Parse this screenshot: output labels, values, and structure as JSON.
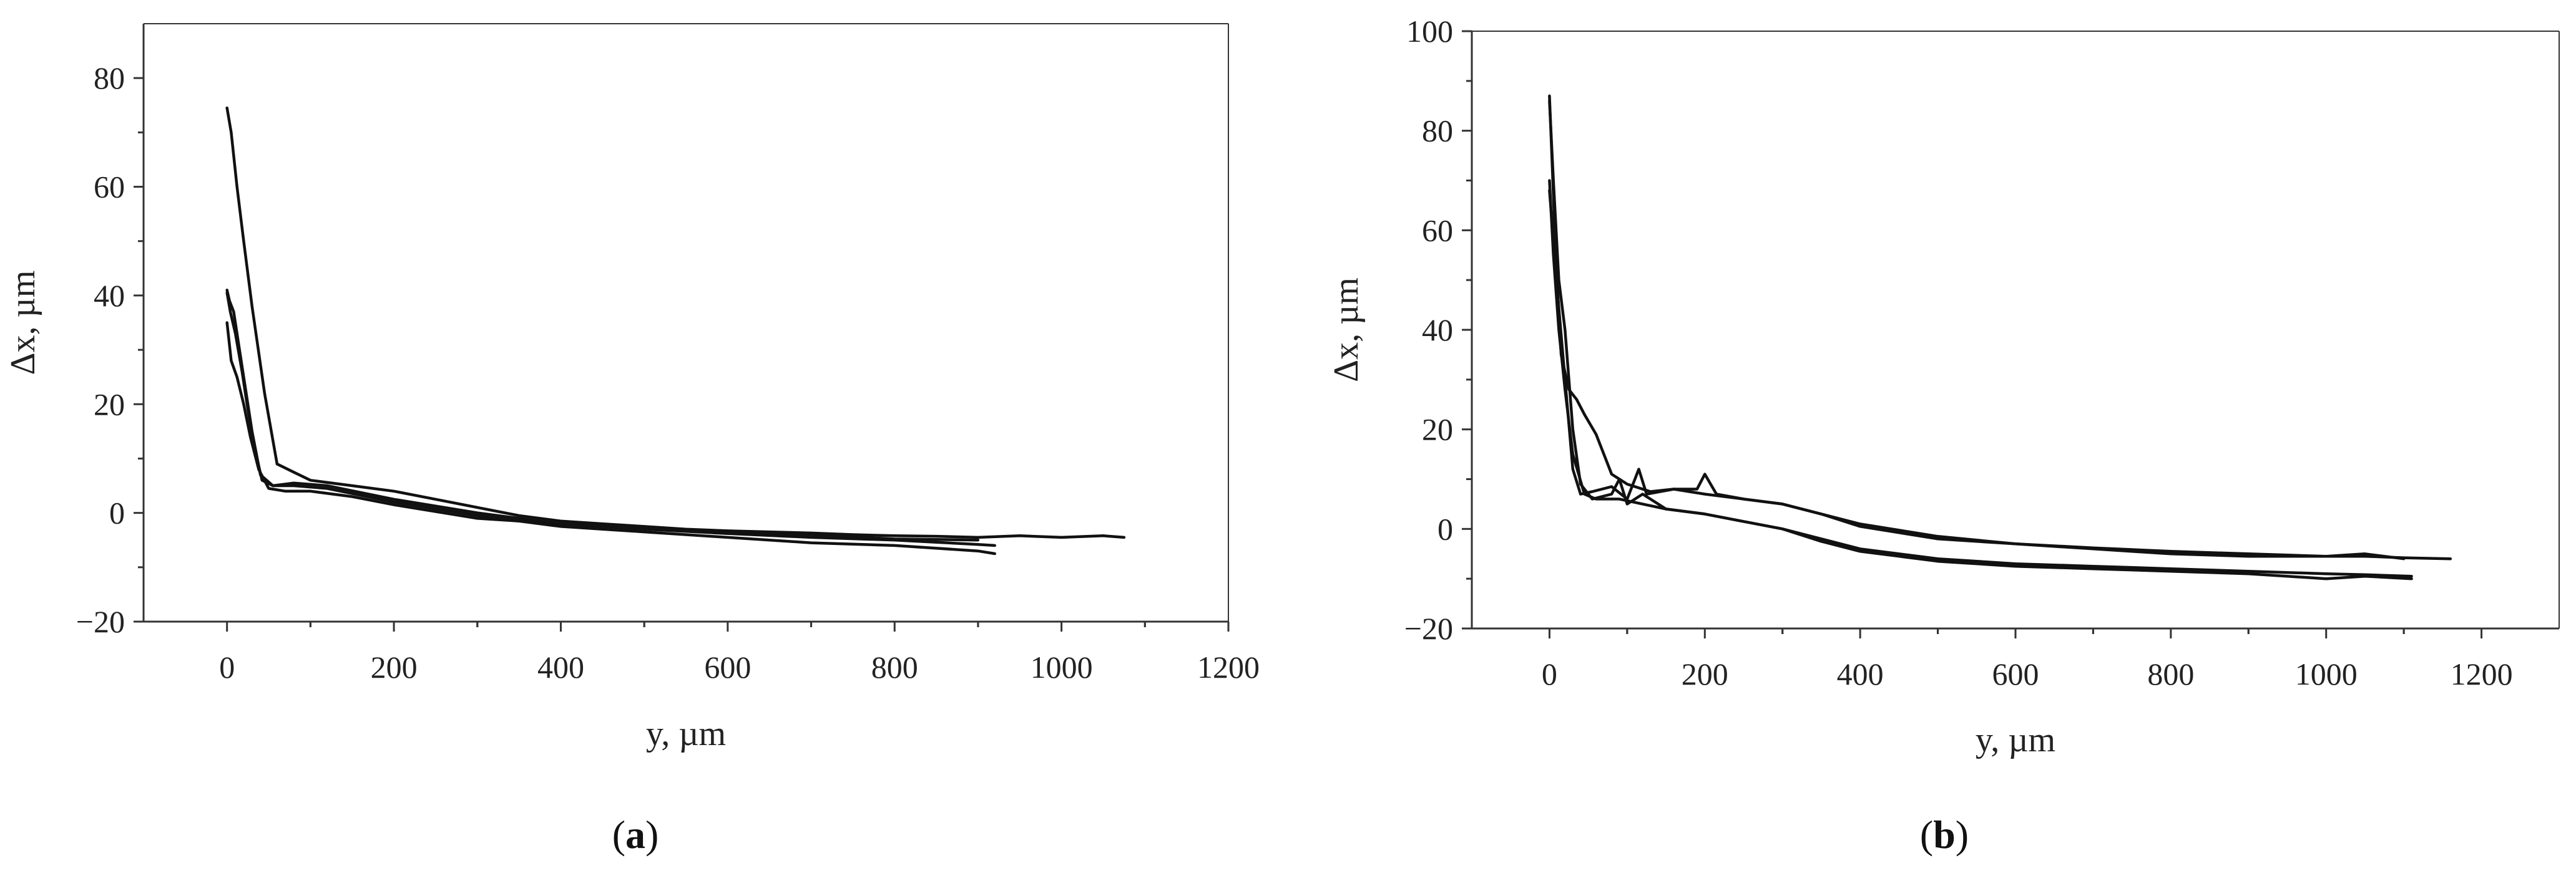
{
  "chart_data": [
    {
      "type": "line",
      "panel_label": "a",
      "xlabel": "y, µm",
      "ylabel": "Δx, µm",
      "xlim": [
        -100,
        1200
      ],
      "ylim": [
        -20,
        90
      ],
      "xticks": [
        0,
        200,
        400,
        600,
        800,
        1000,
        1200
      ],
      "yticks": [
        -20,
        0,
        20,
        40,
        60,
        80
      ],
      "ytick_labels": [
        "−20",
        "0",
        "20",
        "40",
        "60",
        "80"
      ],
      "series": [
        {
          "x": [
            0,
            5,
            12,
            20,
            30,
            45,
            60,
            80,
            100,
            150,
            200,
            250,
            300,
            350,
            400,
            450,
            500,
            550,
            600,
            650,
            700,
            750,
            800,
            850,
            900,
            950,
            1000,
            1050,
            1075
          ],
          "y": [
            74.5,
            70,
            60,
            50,
            38,
            22,
            9,
            7.5,
            6,
            5,
            4,
            2.5,
            1,
            -0.5,
            -1.5,
            -2,
            -2.5,
            -3,
            -3.3,
            -3.5,
            -3.7,
            -4,
            -4.2,
            -4.3,
            -4.5,
            -4.2,
            -4.5,
            -4.2,
            -4.5
          ]
        },
        {
          "x": [
            0,
            3,
            8,
            15,
            22,
            30,
            40,
            55,
            80,
            120,
            200,
            300,
            400,
            500,
            600,
            700,
            800,
            900,
            920
          ],
          "y": [
            41,
            39,
            37,
            30,
            23,
            15,
            7,
            5,
            5.5,
            5,
            2.5,
            0,
            -2,
            -3,
            -3.8,
            -4.5,
            -5,
            -5.8,
            -6
          ]
        },
        {
          "x": [
            0,
            4,
            10,
            18,
            25,
            33,
            42,
            55,
            80,
            120,
            200,
            300,
            400,
            500,
            600,
            700,
            800,
            900,
            920
          ],
          "y": [
            40.5,
            37,
            33,
            26,
            19,
            12,
            6,
            5,
            5,
            4.5,
            2,
            -0.5,
            -2.5,
            -3.5,
            -4.5,
            -5.5,
            -6,
            -7,
            -7.5
          ]
        },
        {
          "x": [
            0,
            5,
            12,
            20,
            28,
            38,
            50,
            70,
            100,
            150,
            200,
            300,
            400,
            500,
            600,
            700,
            800,
            900
          ],
          "y": [
            35,
            28,
            25,
            20,
            14,
            8,
            4.5,
            4,
            4,
            3,
            1.5,
            -1,
            -2,
            -2.8,
            -3.5,
            -4,
            -4.8,
            -5
          ]
        }
      ]
    },
    {
      "type": "line",
      "panel_label": "b",
      "xlabel": "y, µm",
      "ylabel": "Δx, µm",
      "xlim": [
        -100,
        1300
      ],
      "ylim": [
        -20,
        100
      ],
      "xticks": [
        0,
        200,
        400,
        600,
        800,
        1000,
        1200
      ],
      "yticks": [
        -20,
        0,
        20,
        40,
        60,
        80,
        100
      ],
      "ytick_labels": [
        "−20",
        "0",
        "20",
        "40",
        "60",
        "80",
        "100"
      ],
      "series": [
        {
          "x": [
            0,
            3,
            8,
            15,
            25,
            35,
            45,
            60,
            80,
            100,
            130,
            160,
            200,
            250,
            300,
            350,
            400,
            500,
            600,
            700,
            800,
            900,
            1000,
            1050,
            1100,
            1160
          ],
          "y": [
            87,
            75,
            55,
            35,
            28,
            26,
            23,
            19,
            11,
            9,
            7.5,
            8,
            7,
            6,
            5,
            3,
            1,
            -1.5,
            -3,
            -3.8,
            -4.5,
            -5,
            -5.5,
            -5.5,
            -5.8,
            -6
          ]
        },
        {
          "x": [
            0,
            4,
            10,
            20,
            30,
            40,
            55,
            80,
            100,
            115,
            125,
            160,
            190,
            200,
            215,
            250,
            300,
            350,
            400,
            500,
            600,
            700,
            800,
            900,
            1000,
            1050,
            1100
          ],
          "y": [
            68,
            60,
            48,
            30,
            12,
            7,
            7.5,
            8.5,
            6,
            12,
            7,
            8,
            8,
            11,
            7,
            6,
            5,
            3,
            0.5,
            -2,
            -3,
            -4,
            -5,
            -5.5,
            -5.5,
            -5,
            -6
          ]
        },
        {
          "x": [
            0,
            5,
            12,
            20,
            30,
            40,
            55,
            80,
            90,
            100,
            120,
            150,
            200,
            250,
            300,
            350,
            400,
            500,
            600,
            700,
            800,
            900,
            1000,
            1050,
            1110
          ],
          "y": [
            86,
            70,
            50,
            40,
            20,
            9,
            6,
            7,
            10,
            5,
            7,
            4,
            3,
            1.5,
            0,
            -2,
            -4,
            -6,
            -7,
            -7.5,
            -8,
            -8.5,
            -9,
            -9.2,
            -9.5
          ]
        },
        {
          "x": [
            0,
            5,
            12,
            20,
            30,
            45,
            60,
            90,
            120,
            150,
            200,
            250,
            300,
            350,
            400,
            450,
            500,
            600,
            700,
            800,
            900,
            1000,
            1050,
            1110
          ],
          "y": [
            70,
            55,
            40,
            28,
            15,
            7,
            6,
            6,
            5,
            4,
            3,
            1.5,
            0,
            -2.5,
            -4.5,
            -5.5,
            -6.5,
            -7.5,
            -8,
            -8.5,
            -9,
            -10,
            -9.5,
            -10
          ]
        }
      ]
    }
  ]
}
